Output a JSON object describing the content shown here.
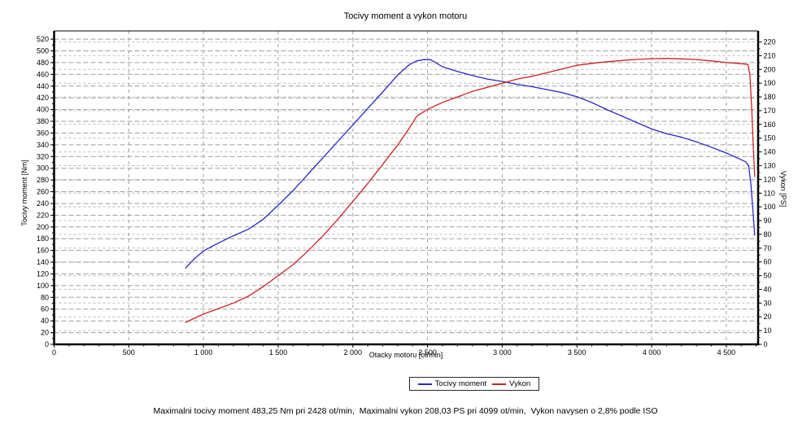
{
  "title": "Tocivy moment a vykon motoru",
  "caption": "Maximalni tocivy moment 483,25 Nm pri 2428 ot/min,  Maximalni vykon 208,03 PS pri 4099 ot/min,  Vykon navysen o 2,8% podle ISO",
  "legend": {
    "items": [
      {
        "label": "Tocivy moment",
        "color": "#2828c8"
      },
      {
        "label": "Vykon",
        "color": "#d02020"
      }
    ]
  },
  "chart_data": {
    "type": "line",
    "title": "Tocivy moment a vykon motoru",
    "xlabel": "Otacky motoru [ot/min]",
    "ylabel_left": "Tocivy moment [Nm]",
    "ylabel_right": "Vykon [PS]",
    "xlim": [
      0,
      4713
    ],
    "ylim_left": [
      0,
      534
    ],
    "ylim_right": [
      0,
      228
    ],
    "grid": true,
    "legend_position": "bottom",
    "x_ticks": [
      {
        "v": 0,
        "label": "0"
      },
      {
        "v": 500,
        "label": "500"
      },
      {
        "v": 1000,
        "label": "1 000"
      },
      {
        "v": 1500,
        "label": "1 500"
      },
      {
        "v": 2000,
        "label": "2 000"
      },
      {
        "v": 2500,
        "label": "2 500"
      },
      {
        "v": 3000,
        "label": "3 000"
      },
      {
        "v": 3500,
        "label": "3 500"
      },
      {
        "v": 4000,
        "label": "4 000"
      },
      {
        "v": 4500,
        "label": "4 500"
      }
    ],
    "x_minor_step": 100,
    "y_left_ticks": {
      "min": 0,
      "max": 520,
      "step": 20,
      "minor": 10
    },
    "y_right_ticks": {
      "min": 0,
      "max": 220,
      "step": 10,
      "minor": 5
    },
    "series": [
      {
        "name": "Tocivy moment",
        "axis": "left",
        "unit": "Nm",
        "color": "#2828c8",
        "points": [
          [
            880,
            130
          ],
          [
            940,
            146
          ],
          [
            1000,
            159
          ],
          [
            1080,
            170
          ],
          [
            1200,
            185
          ],
          [
            1300,
            196
          ],
          [
            1400,
            213
          ],
          [
            1500,
            237
          ],
          [
            1600,
            262
          ],
          [
            1700,
            290
          ],
          [
            1800,
            318
          ],
          [
            1900,
            346
          ],
          [
            2000,
            374
          ],
          [
            2100,
            402
          ],
          [
            2200,
            430
          ],
          [
            2300,
            459
          ],
          [
            2380,
            477
          ],
          [
            2428,
            483
          ],
          [
            2470,
            485
          ],
          [
            2520,
            485
          ],
          [
            2600,
            473
          ],
          [
            2700,
            465
          ],
          [
            2800,
            458
          ],
          [
            2900,
            452
          ],
          [
            3000,
            448
          ],
          [
            3100,
            443
          ],
          [
            3200,
            439
          ],
          [
            3300,
            434
          ],
          [
            3400,
            429
          ],
          [
            3500,
            422
          ],
          [
            3600,
            412
          ],
          [
            3700,
            400
          ],
          [
            3800,
            389
          ],
          [
            3900,
            378
          ],
          [
            4000,
            367
          ],
          [
            4100,
            359
          ],
          [
            4200,
            353
          ],
          [
            4300,
            345
          ],
          [
            4400,
            336
          ],
          [
            4500,
            326
          ],
          [
            4570,
            318
          ],
          [
            4630,
            311
          ],
          [
            4650,
            304
          ],
          [
            4665,
            272
          ],
          [
            4678,
            228
          ],
          [
            4690,
            186
          ]
        ]
      },
      {
        "name": "Vykon",
        "axis": "right",
        "unit": "PS",
        "color": "#d02020",
        "points": [
          [
            880,
            16
          ],
          [
            1000,
            22
          ],
          [
            1100,
            26
          ],
          [
            1200,
            30
          ],
          [
            1300,
            35
          ],
          [
            1400,
            42
          ],
          [
            1500,
            50
          ],
          [
            1600,
            58
          ],
          [
            1700,
            68
          ],
          [
            1800,
            79
          ],
          [
            1900,
            91
          ],
          [
            2000,
            104
          ],
          [
            2100,
            117
          ],
          [
            2200,
            131
          ],
          [
            2300,
            145
          ],
          [
            2370,
            156
          ],
          [
            2428,
            166
          ],
          [
            2500,
            171
          ],
          [
            2600,
            176
          ],
          [
            2700,
            180
          ],
          [
            2800,
            184
          ],
          [
            2900,
            187
          ],
          [
            3000,
            190
          ],
          [
            3100,
            193
          ],
          [
            3200,
            195
          ],
          [
            3350,
            199
          ],
          [
            3500,
            203
          ],
          [
            3650,
            205
          ],
          [
            3800,
            206.5
          ],
          [
            3900,
            207.3
          ],
          [
            4000,
            207.8
          ],
          [
            4099,
            208
          ],
          [
            4200,
            207.7
          ],
          [
            4300,
            207.2
          ],
          [
            4400,
            206.2
          ],
          [
            4500,
            205
          ],
          [
            4600,
            204.2
          ],
          [
            4645,
            203.6
          ],
          [
            4658,
            196
          ],
          [
            4670,
            172
          ],
          [
            4680,
            146
          ],
          [
            4690,
            122
          ]
        ]
      }
    ],
    "stats": {
      "max_torque_nm": "483,25",
      "max_torque_rpm": 2428,
      "max_power_ps": "208,03",
      "max_power_rpm": 4099,
      "iso_note": "Vykon navysen o 2,8% podle ISO"
    }
  }
}
